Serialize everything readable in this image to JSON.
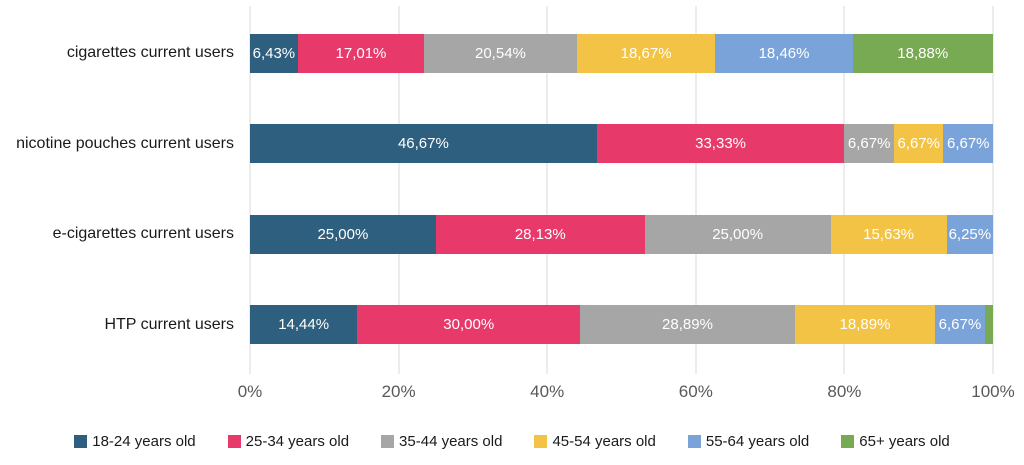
{
  "chart_data": {
    "type": "bar",
    "orientation": "horizontal",
    "stacked": true,
    "title": "",
    "xlabel": "",
    "ylabel": "",
    "grid": true,
    "legend_position": "bottom",
    "x_axis": {
      "min": 0,
      "max": 100,
      "ticks": [
        "0%",
        "20%",
        "40%",
        "60%",
        "80%",
        "100%"
      ]
    },
    "categories": [
      "cigarettes current users",
      "nicotine pouches current users",
      "e-cigarettes current users",
      "HTP current users"
    ],
    "series": [
      {
        "name": "18-24 years old",
        "color": "#2E5F7E",
        "values": [
          6.43,
          46.67,
          25.0,
          14.44
        ],
        "labels": [
          "6,43%",
          "46,67%",
          "25,00%",
          "14,44%"
        ]
      },
      {
        "name": "25-34 years old",
        "color": "#E8396B",
        "values": [
          17.01,
          33.33,
          28.13,
          30.0
        ],
        "labels": [
          "17,01%",
          "33,33%",
          "28,13%",
          "30,00%"
        ]
      },
      {
        "name": "35-44 years old",
        "color": "#A6A6A6",
        "values": [
          20.54,
          6.67,
          25.0,
          28.89
        ],
        "labels": [
          "20,54%",
          "6,67%",
          "25,00%",
          "28,89%"
        ]
      },
      {
        "name": "45-54 years old",
        "color": "#F2C344",
        "values": [
          18.67,
          6.67,
          15.63,
          18.89
        ],
        "labels": [
          "18,67%",
          "6,67%",
          "15,63%",
          "18,89%"
        ]
      },
      {
        "name": "55-64 years old",
        "color": "#7AA4D9",
        "values": [
          18.46,
          6.67,
          6.25,
          6.67
        ],
        "labels": [
          "18,46%",
          "6,67%",
          "6,25%",
          "6,67%"
        ]
      },
      {
        "name": "65+ years old",
        "color": "#78A953",
        "values": [
          18.88,
          0,
          0,
          1.11
        ],
        "labels": [
          "18,88%",
          "",
          "",
          ""
        ]
      }
    ]
  }
}
